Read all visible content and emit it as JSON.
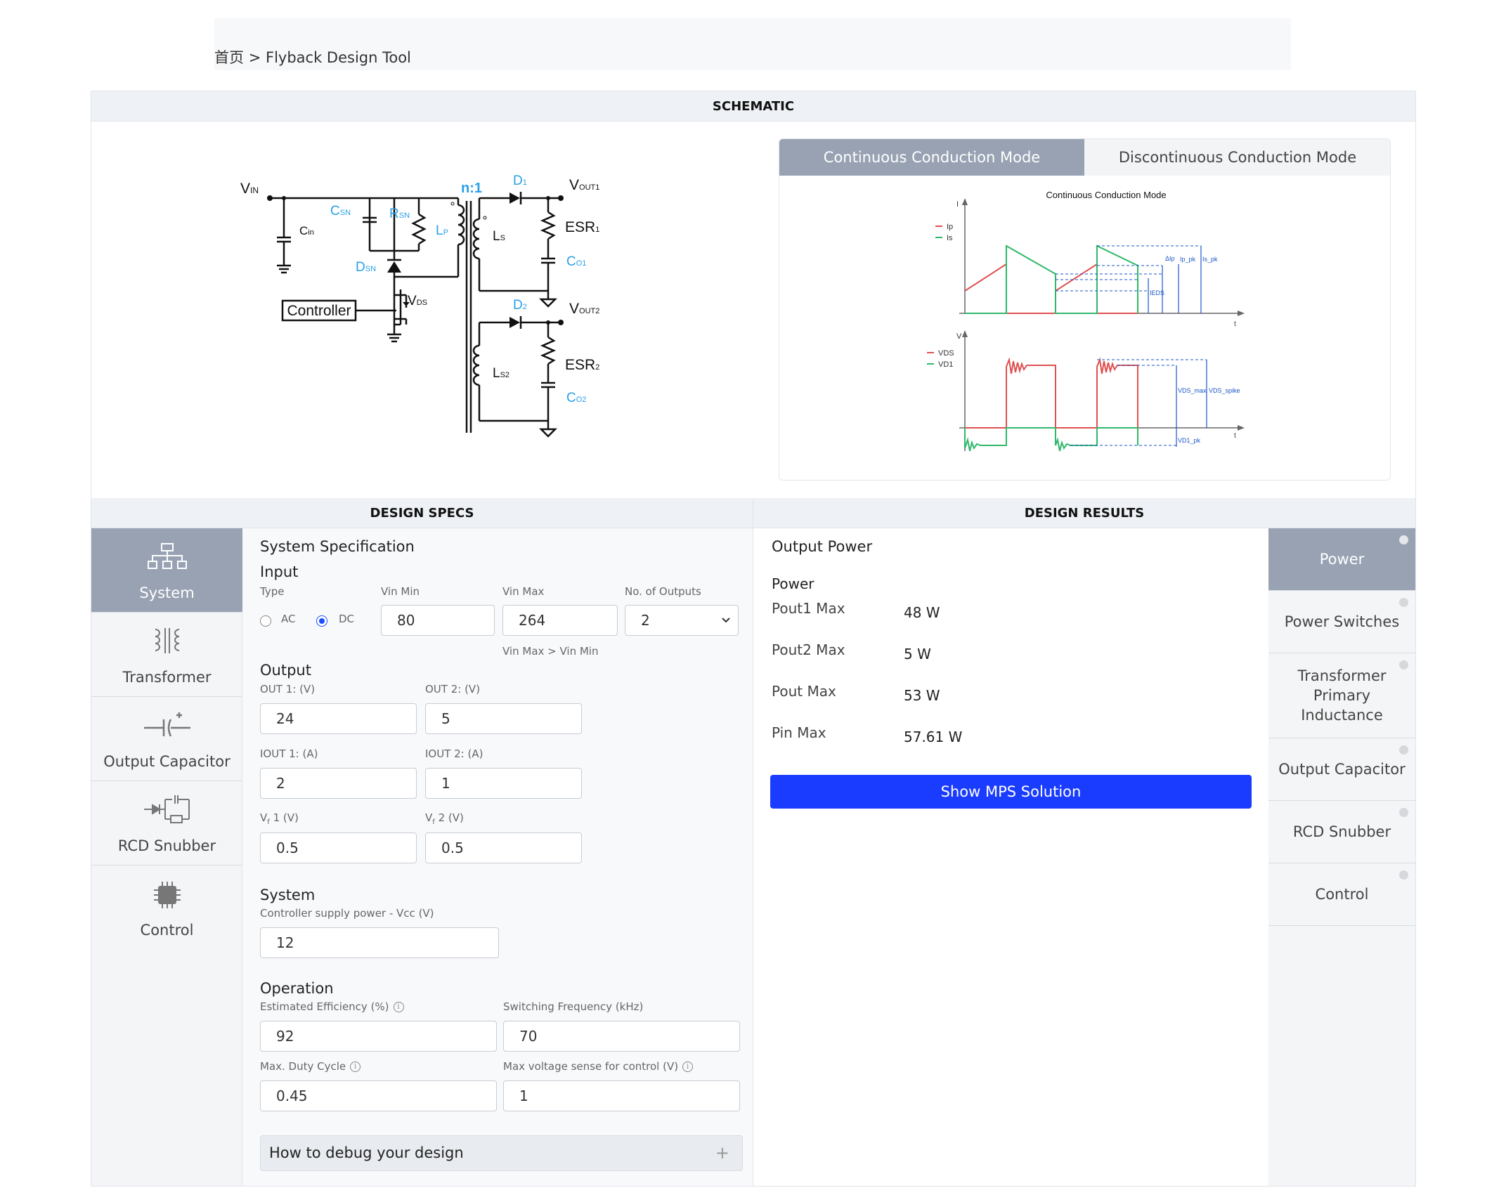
{
  "breadcrumb": {
    "home": "首页",
    "separator": ">",
    "current": "Flyback Design Tool"
  },
  "schematic": {
    "title": "SCHEMATIC",
    "labels": {
      "vin": "V",
      "vin_sub": "IN",
      "cin": "C",
      "cin_sub": "in",
      "csn": "C",
      "csn_sub": "SN",
      "rsn": "R",
      "rsn_sub": "SN",
      "lp": "L",
      "lp_sub": "P",
      "dsn": "D",
      "dsn_sub": "SN",
      "ratio": "n:1",
      "d1": "D",
      "d1_sub": "1",
      "vout1": "V",
      "vout1_sub": "OUT1",
      "ls": "L",
      "ls_sub": "S",
      "esr1": "ESR",
      "esr1_sub": "1",
      "co1": "C",
      "co1_sub": "O1",
      "controller": "Controller",
      "vds": "V",
      "vds_sub": "DS",
      "d2": "D",
      "d2_sub": "2",
      "vout2": "V",
      "vout2_sub": "OUT2",
      "ls2": "L",
      "ls2_sub": "S2",
      "esr2": "ESR",
      "esr2_sub": "2",
      "co2": "C",
      "co2_sub": "O2"
    }
  },
  "modes": {
    "tabs": [
      {
        "label": "Continuous Conduction Mode",
        "active": true
      },
      {
        "label": "Discontinuous Conduction Mode",
        "active": false
      }
    ],
    "waveform": {
      "title": "Continuous  Conduction Mode",
      "top_axis_y": "I",
      "top_axis_x": "t",
      "legend_top": [
        "Ip",
        "Is"
      ],
      "top_annotations": [
        "ΔIp",
        "Ip_pk",
        "Is_pk",
        "IEDS"
      ],
      "bottom_axis_y": "V",
      "bottom_axis_x": "t",
      "legend_bottom": [
        "VDS",
        "VD1"
      ],
      "bottom_annotations": [
        "VDS_max",
        "VDS_spike",
        "VD1_pk"
      ],
      "colors": {
        "primary": "#e05050",
        "secondary": "#2fb86a",
        "annotation": "#1a55c8"
      }
    }
  },
  "specs": {
    "title": "DESIGN SPECS",
    "section_title": "System Specification",
    "input": {
      "title": "Input",
      "type_label": "Type",
      "ac_label": "AC",
      "dc_label": "DC",
      "selected": "DC",
      "vin_min_label": "Vin Min",
      "vin_min": "80",
      "vin_max_label": "Vin Max",
      "vin_max": "264",
      "vin_hint": "Vin Max > Vin Min",
      "outputs_label": "No. of Outputs",
      "outputs": "2"
    },
    "output": {
      "title": "Output",
      "out1_label": "OUT 1: (V)",
      "out1": "24",
      "out2_label": "OUT 2: (V)",
      "out2": "5",
      "iout1_label": "IOUT 1: (A)",
      "iout1": "2",
      "iout2_label": "IOUT 2: (A)",
      "iout2": "1",
      "vf1_label_pre": "V",
      "vf1_label_sub": "f",
      "vf1_label_post": " 1 (V)",
      "vf1": "0.5",
      "vf2_label_pre": "V",
      "vf2_label_sub": "f",
      "vf2_label_post": " 2 (V)",
      "vf2": "0.5"
    },
    "system": {
      "title": "System",
      "vcc_label": "Controller supply power - Vcc (V)",
      "vcc": "12"
    },
    "operation": {
      "title": "Operation",
      "eff_label": "Estimated Efficiency (%)",
      "eff": "92",
      "fsw_label": "Switching Frequency (kHz)",
      "fsw": "70",
      "duty_label": "Max. Duty Cycle",
      "duty": "0.45",
      "vsense_label": "Max voltage sense for control (V)",
      "vsense": "1"
    },
    "debug": {
      "label": "How to debug your design",
      "icon": "+"
    }
  },
  "left_nav": [
    {
      "label": "System",
      "icon": "system-icon",
      "active": true
    },
    {
      "label": "Transformer",
      "icon": "transformer-icon",
      "active": false
    },
    {
      "label": "Output Capacitor",
      "icon": "capacitor-icon",
      "active": false
    },
    {
      "label": "RCD Snubber",
      "icon": "snubber-icon",
      "active": false
    },
    {
      "label": "Control",
      "icon": "chip-icon",
      "active": false
    }
  ],
  "results": {
    "title": "DESIGN RESULTS",
    "section_title": "Output Power",
    "group_title": "Power",
    "rows": [
      {
        "label": "Pout1 Max",
        "value": "48 W"
      },
      {
        "label": "Pout2 Max",
        "value": "5 W"
      },
      {
        "label": "Pout Max",
        "value": "53 W"
      },
      {
        "label": "Pin Max",
        "value": "57.61 W"
      }
    ],
    "button": "Show MPS Solution",
    "accent": "#1a3cff"
  },
  "right_nav": [
    {
      "label": "Power",
      "active": true
    },
    {
      "label": "Power Switches",
      "active": false
    },
    {
      "label": "Transformer Primary Inductance",
      "active": false
    },
    {
      "label": "Output Capacitor",
      "active": false
    },
    {
      "label": "RCD Snubber",
      "active": false
    },
    {
      "label": "Control",
      "active": false
    }
  ]
}
